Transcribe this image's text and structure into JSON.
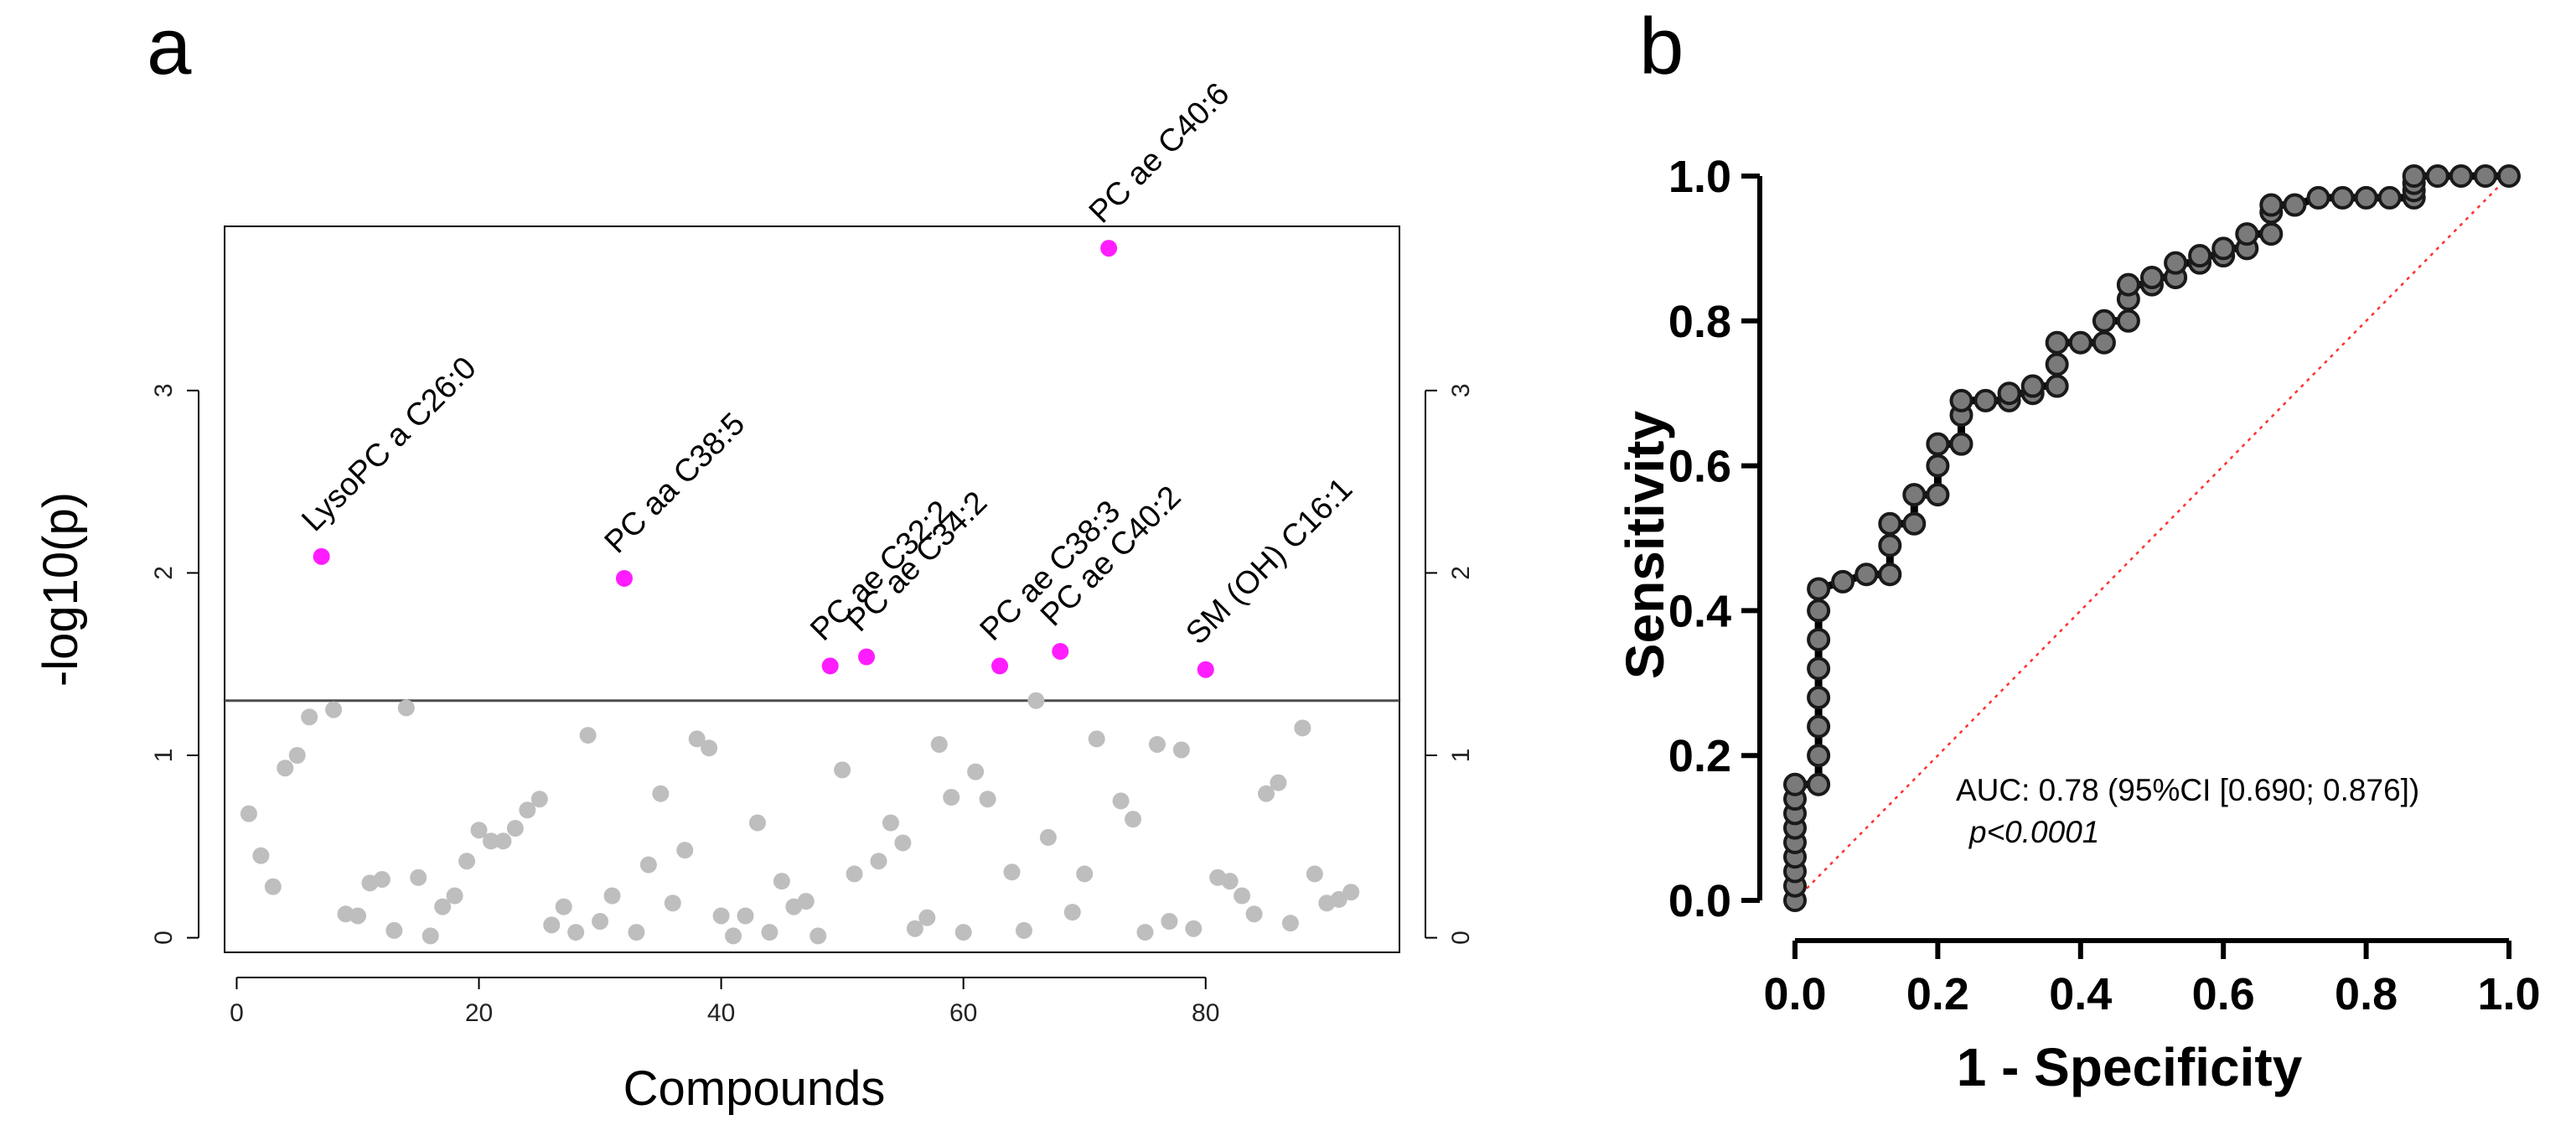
{
  "panels": {
    "a": "a",
    "b": "b"
  },
  "colors": {
    "highlight": "#ff1dff",
    "background_point": "#bebebe",
    "roc_line": "#000000",
    "roc_marker_fill": "#7a7a7a",
    "reference_line": "#ff3030"
  },
  "chart_data": [
    {
      "type": "scatter",
      "title": "",
      "xlabel": "Compounds",
      "ylabel": "-log10(p)",
      "xlim": [
        -1,
        96
      ],
      "ylim": [
        -0.08,
        3.9
      ],
      "xticks": [
        "0",
        "20",
        "40",
        "60",
        "80"
      ],
      "xtick_values": [
        0,
        20,
        40,
        60,
        80
      ],
      "yticks": [
        "0",
        "1",
        "2",
        "3"
      ],
      "ytick_values": [
        0,
        1,
        2,
        3
      ],
      "threshold": 1.3,
      "points": [
        [
          1,
          0.68
        ],
        [
          2,
          0.45
        ],
        [
          3,
          0.28
        ],
        [
          4,
          0.93
        ],
        [
          5,
          1.0
        ],
        [
          6,
          1.21
        ],
        [
          8,
          1.25
        ],
        [
          9,
          0.13
        ],
        [
          10,
          0.12
        ],
        [
          11,
          0.3
        ],
        [
          12,
          0.32
        ],
        [
          13,
          0.04
        ],
        [
          14,
          1.26
        ],
        [
          15,
          0.33
        ],
        [
          16,
          0.01
        ],
        [
          17,
          0.17
        ],
        [
          18,
          0.23
        ],
        [
          19,
          0.42
        ],
        [
          20,
          0.59
        ],
        [
          21,
          0.53
        ],
        [
          22,
          0.53
        ],
        [
          23,
          0.6
        ],
        [
          24,
          0.7
        ],
        [
          25,
          0.76
        ],
        [
          26,
          0.07
        ],
        [
          27,
          0.17
        ],
        [
          28,
          0.03
        ],
        [
          29,
          1.11
        ],
        [
          30,
          0.09
        ],
        [
          31,
          0.23
        ],
        [
          33,
          0.03
        ],
        [
          34,
          0.4
        ],
        [
          35,
          0.79
        ],
        [
          36,
          0.19
        ],
        [
          37,
          0.48
        ],
        [
          38,
          1.09
        ],
        [
          39,
          1.04
        ],
        [
          40,
          0.12
        ],
        [
          41,
          0.01
        ],
        [
          42,
          0.12
        ],
        [
          43,
          0.63
        ],
        [
          44,
          0.03
        ],
        [
          45,
          0.31
        ],
        [
          46,
          0.17
        ],
        [
          47,
          0.2
        ],
        [
          48,
          0.01
        ],
        [
          50,
          0.92
        ],
        [
          51,
          0.35
        ],
        [
          53,
          0.42
        ],
        [
          54,
          0.63
        ],
        [
          55,
          0.52
        ],
        [
          56,
          0.05
        ],
        [
          57,
          0.11
        ],
        [
          58,
          1.06
        ],
        [
          59,
          0.77
        ],
        [
          60,
          0.03
        ],
        [
          61,
          0.91
        ],
        [
          62,
          0.76
        ],
        [
          64,
          0.36
        ],
        [
          65,
          0.04
        ],
        [
          66,
          1.3
        ],
        [
          67,
          0.55
        ],
        [
          69,
          0.14
        ],
        [
          70,
          0.35
        ],
        [
          71,
          1.09
        ],
        [
          73,
          0.75
        ],
        [
          74,
          0.65
        ],
        [
          75,
          0.03
        ],
        [
          76,
          1.06
        ],
        [
          77,
          0.09
        ],
        [
          78,
          1.03
        ],
        [
          79,
          0.05
        ],
        [
          81,
          0.33
        ],
        [
          82,
          0.31
        ],
        [
          83,
          0.23
        ],
        [
          84,
          0.13
        ],
        [
          85,
          0.79
        ],
        [
          86,
          0.85
        ],
        [
          87,
          0.08
        ],
        [
          88,
          1.15
        ],
        [
          89,
          0.35
        ],
        [
          90,
          0.19
        ],
        [
          91,
          0.21
        ],
        [
          92,
          0.25
        ]
      ],
      "highlighted": [
        {
          "x": 7,
          "y": 2.09,
          "label": "LysoPC a C26:0"
        },
        {
          "x": 32,
          "y": 1.97,
          "label": "PC aa C38:5"
        },
        {
          "x": 49,
          "y": 1.49,
          "label": "PC ae C32:2"
        },
        {
          "x": 52,
          "y": 1.54,
          "label": "PC ae C34:2"
        },
        {
          "x": 63,
          "y": 1.49,
          "label": "PC ae C38:3"
        },
        {
          "x": 68,
          "y": 1.57,
          "label": "PC ae C40:2"
        },
        {
          "x": 72,
          "y": 3.78,
          "label": "PC ae C40:6"
        },
        {
          "x": 80,
          "y": 1.47,
          "label": "SM (OH) C16:1"
        }
      ]
    },
    {
      "type": "line",
      "title": "",
      "xlabel": "1 - Specificity",
      "ylabel": "Sensitivity",
      "xlim": [
        0,
        1
      ],
      "ylim": [
        0,
        1
      ],
      "xticks": [
        "0.0",
        "0.2",
        "0.4",
        "0.6",
        "0.8",
        "1.0"
      ],
      "yticks": [
        "0.0",
        "0.2",
        "0.4",
        "0.6",
        "0.8",
        "1.0"
      ],
      "tick_values": [
        0,
        0.2,
        0.4,
        0.6,
        0.8,
        1.0
      ],
      "auc_text": "AUC: 0.78 (95%CI [0.690; 0.876])",
      "p_text": "p<0.0001",
      "roc": [
        [
          0,
          0
        ],
        [
          0,
          0.02
        ],
        [
          0,
          0.04
        ],
        [
          0,
          0.06
        ],
        [
          0,
          0.08
        ],
        [
          0,
          0.1
        ],
        [
          0,
          0.12
        ],
        [
          0,
          0.14
        ],
        [
          0,
          0.16
        ],
        [
          0.033,
          0.16
        ],
        [
          0.033,
          0.2
        ],
        [
          0.033,
          0.24
        ],
        [
          0.033,
          0.28
        ],
        [
          0.033,
          0.32
        ],
        [
          0.033,
          0.36
        ],
        [
          0.033,
          0.4
        ],
        [
          0.033,
          0.43
        ],
        [
          0.067,
          0.44
        ],
        [
          0.1,
          0.45
        ],
        [
          0.133,
          0.45
        ],
        [
          0.133,
          0.49
        ],
        [
          0.133,
          0.52
        ],
        [
          0.167,
          0.52
        ],
        [
          0.167,
          0.56
        ],
        [
          0.2,
          0.56
        ],
        [
          0.2,
          0.6
        ],
        [
          0.2,
          0.63
        ],
        [
          0.233,
          0.63
        ],
        [
          0.233,
          0.67
        ],
        [
          0.233,
          0.69
        ],
        [
          0.267,
          0.69
        ],
        [
          0.3,
          0.69
        ],
        [
          0.3,
          0.7
        ],
        [
          0.333,
          0.7
        ],
        [
          0.333,
          0.71
        ],
        [
          0.367,
          0.71
        ],
        [
          0.367,
          0.74
        ],
        [
          0.367,
          0.77
        ],
        [
          0.4,
          0.77
        ],
        [
          0.433,
          0.77
        ],
        [
          0.433,
          0.8
        ],
        [
          0.467,
          0.8
        ],
        [
          0.467,
          0.83
        ],
        [
          0.467,
          0.85
        ],
        [
          0.5,
          0.85
        ],
        [
          0.5,
          0.86
        ],
        [
          0.533,
          0.86
        ],
        [
          0.533,
          0.88
        ],
        [
          0.567,
          0.88
        ],
        [
          0.567,
          0.89
        ],
        [
          0.6,
          0.89
        ],
        [
          0.6,
          0.9
        ],
        [
          0.633,
          0.9
        ],
        [
          0.633,
          0.92
        ],
        [
          0.667,
          0.92
        ],
        [
          0.667,
          0.95
        ],
        [
          0.667,
          0.96
        ],
        [
          0.7,
          0.96
        ],
        [
          0.733,
          0.97
        ],
        [
          0.767,
          0.97
        ],
        [
          0.8,
          0.97
        ],
        [
          0.833,
          0.97
        ],
        [
          0.867,
          0.97
        ],
        [
          0.867,
          0.98
        ],
        [
          0.867,
          0.99
        ],
        [
          0.867,
          1.0
        ],
        [
          0.9,
          1.0
        ],
        [
          0.933,
          1.0
        ],
        [
          0.967,
          1.0
        ],
        [
          1.0,
          1.0
        ]
      ]
    }
  ]
}
